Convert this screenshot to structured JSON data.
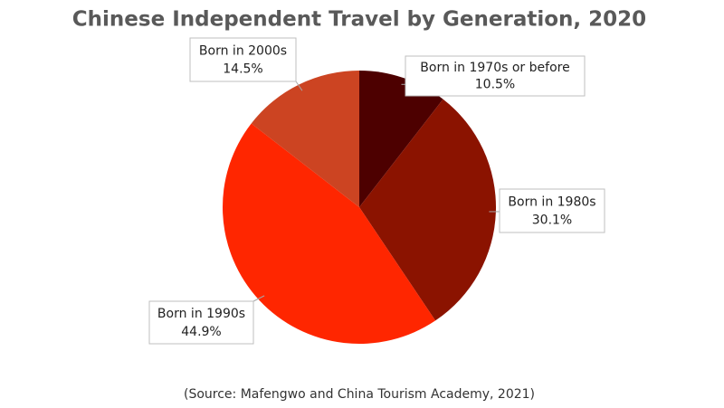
{
  "chart_data": {
    "type": "pie",
    "title": "Chinese Independent Travel by Generation, 2020",
    "categories": [
      "Born in 1970s or before",
      "Born in 1980s",
      "Born in 1990s",
      "Born in 2000s"
    ],
    "values": [
      10.5,
      30.1,
      44.9,
      14.5
    ],
    "value_labels": [
      "10.5%",
      "30.1%",
      "44.9%",
      "14.5%"
    ],
    "colors": [
      "#4d0000",
      "#8b1300",
      "#ff2600",
      "#cc4422"
    ],
    "source": "(Source: Mafengwo and China Tourism Academy, 2021)"
  }
}
